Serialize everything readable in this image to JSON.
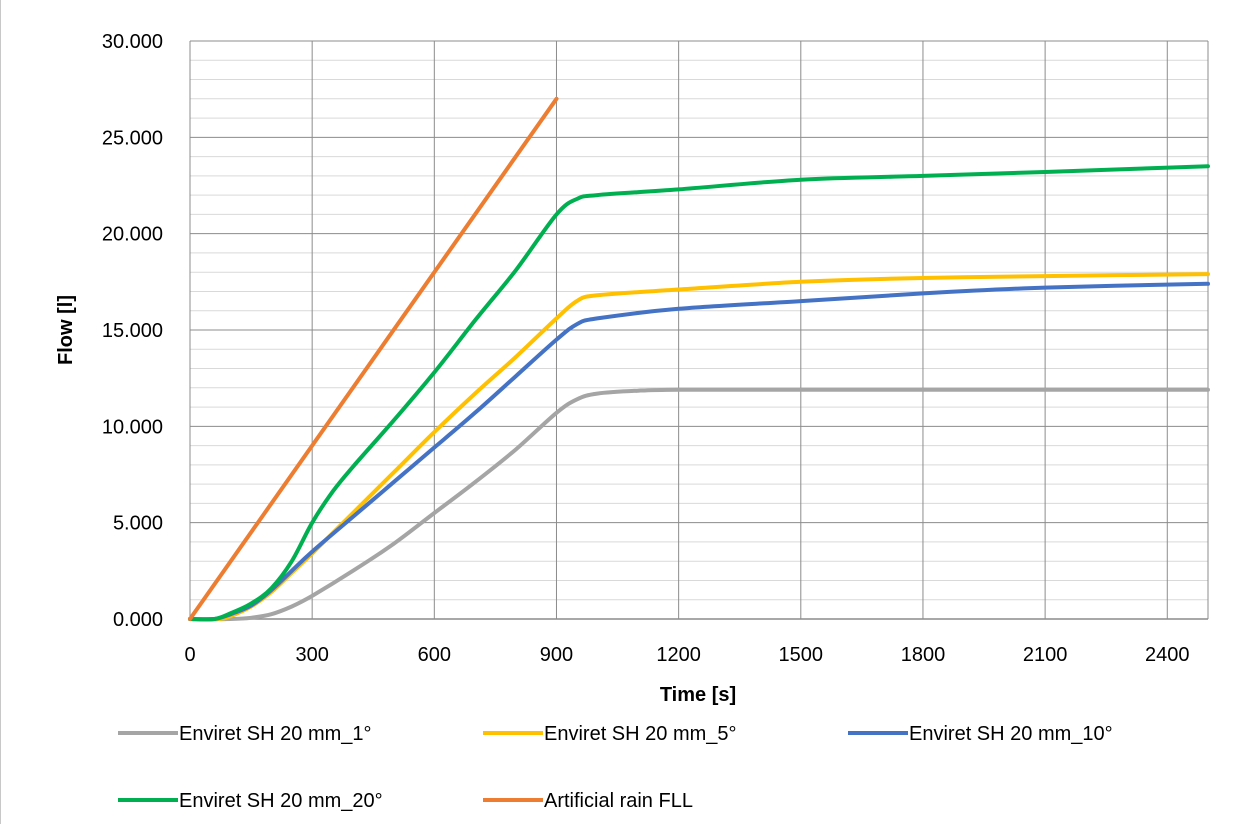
{
  "chart_data": {
    "type": "line",
    "title": "",
    "xlabel": "Time [s]",
    "ylabel": "Flow [l]",
    "xlim": [
      0,
      2500
    ],
    "ylim": [
      0,
      30000
    ],
    "x_ticks": [
      "0",
      "300",
      "600",
      "900",
      "1200",
      "1500",
      "1800",
      "2100",
      "2400"
    ],
    "y_ticks": [
      "0.000",
      "5.000",
      "10.000",
      "15.000",
      "20.000",
      "25.000",
      "30.000"
    ],
    "grid": true,
    "legend_position": "bottom",
    "series": [
      {
        "name": "Enviret SH 20 mm_1°",
        "color": "#a5a5a5",
        "points": [
          [
            0,
            0
          ],
          [
            100,
            0
          ],
          [
            150,
            60
          ],
          [
            200,
            250
          ],
          [
            250,
            650
          ],
          [
            300,
            1200
          ],
          [
            400,
            2500
          ],
          [
            500,
            3900
          ],
          [
            600,
            5500
          ],
          [
            700,
            7100
          ],
          [
            800,
            8800
          ],
          [
            900,
            10700
          ],
          [
            950,
            11400
          ],
          [
            1000,
            11700
          ],
          [
            1100,
            11850
          ],
          [
            1200,
            11900
          ],
          [
            1500,
            11900
          ],
          [
            2000,
            11900
          ],
          [
            2500,
            11900
          ]
        ]
      },
      {
        "name": "Enviret SH 20 mm_5°",
        "color": "#ffc000",
        "points": [
          [
            0,
            0
          ],
          [
            70,
            0
          ],
          [
            100,
            150
          ],
          [
            150,
            650
          ],
          [
            200,
            1400
          ],
          [
            250,
            2400
          ],
          [
            300,
            3400
          ],
          [
            400,
            5500
          ],
          [
            500,
            7600
          ],
          [
            600,
            9700
          ],
          [
            700,
            11700
          ],
          [
            800,
            13600
          ],
          [
            900,
            15600
          ],
          [
            950,
            16500
          ],
          [
            1000,
            16800
          ],
          [
            1200,
            17100
          ],
          [
            1500,
            17500
          ],
          [
            1800,
            17700
          ],
          [
            2100,
            17800
          ],
          [
            2500,
            17900
          ]
        ]
      },
      {
        "name": "Enviret SH 20 mm_10°",
        "color": "#4472c4",
        "points": [
          [
            0,
            0
          ],
          [
            60,
            0
          ],
          [
            100,
            250
          ],
          [
            150,
            700
          ],
          [
            200,
            1500
          ],
          [
            250,
            2500
          ],
          [
            300,
            3500
          ],
          [
            400,
            5300
          ],
          [
            500,
            7100
          ],
          [
            600,
            8900
          ],
          [
            700,
            10700
          ],
          [
            800,
            12600
          ],
          [
            900,
            14500
          ],
          [
            950,
            15300
          ],
          [
            1000,
            15600
          ],
          [
            1200,
            16100
          ],
          [
            1500,
            16500
          ],
          [
            1800,
            16900
          ],
          [
            2100,
            17200
          ],
          [
            2500,
            17400
          ]
        ]
      },
      {
        "name": "Enviret SH 20 mm_20°",
        "color": "#00b050",
        "points": [
          [
            0,
            0
          ],
          [
            60,
            0
          ],
          [
            100,
            300
          ],
          [
            150,
            800
          ],
          [
            200,
            1600
          ],
          [
            250,
            3000
          ],
          [
            300,
            5000
          ],
          [
            350,
            6600
          ],
          [
            400,
            7900
          ],
          [
            500,
            10300
          ],
          [
            600,
            12800
          ],
          [
            700,
            15500
          ],
          [
            800,
            18100
          ],
          [
            900,
            21000
          ],
          [
            950,
            21800
          ],
          [
            1000,
            22000
          ],
          [
            1200,
            22300
          ],
          [
            1500,
            22800
          ],
          [
            1800,
            23000
          ],
          [
            2100,
            23200
          ],
          [
            2500,
            23500
          ]
        ]
      },
      {
        "name": "Artificial rain FLL",
        "color": "#ed7d31",
        "points": [
          [
            0,
            0
          ],
          [
            900,
            27000
          ]
        ]
      }
    ]
  }
}
